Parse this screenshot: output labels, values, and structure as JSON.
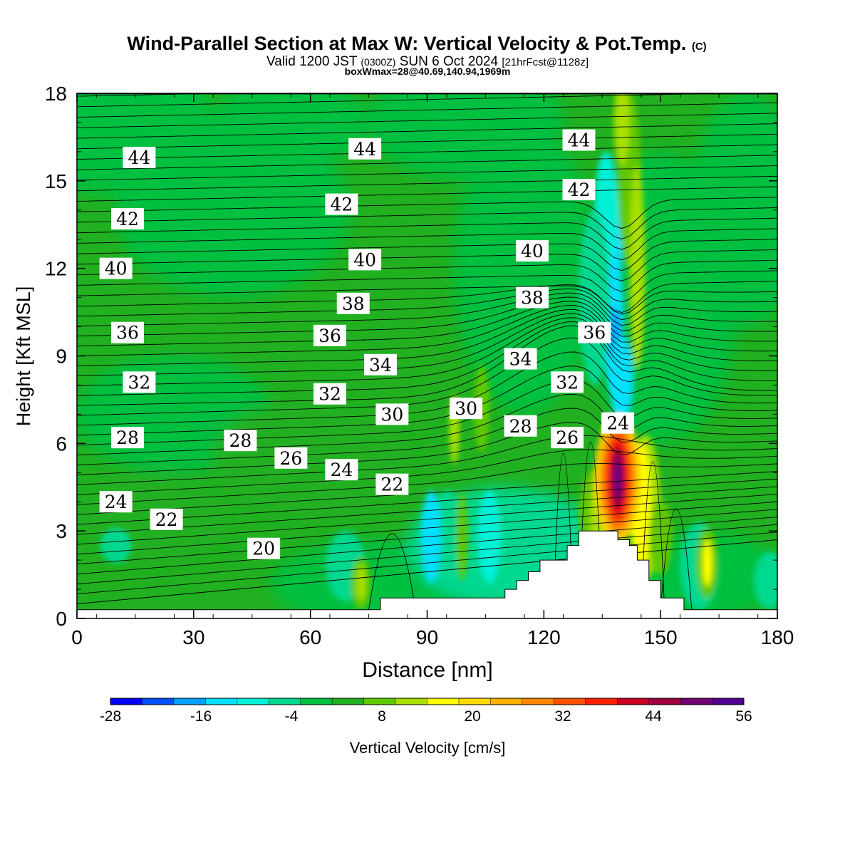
{
  "header": {
    "title": "Wind-Parallel Section at Max W: Vertical Velocity & Pot.Temp.",
    "title_mark": "(C)",
    "valid_prefix": "Valid 1200 JST",
    "valid_z": "(0300Z)",
    "valid_date": "SUN 6 Oct 2024",
    "valid_fcst": "[21hrFcst@1128z]",
    "boxwmax": "boxWmax=28@40.69,140.94,1969m"
  },
  "chart_data": {
    "type": "heatmap",
    "xlabel": "Distance [nm]",
    "ylabel": "Height [Kft MSL]",
    "xlim": [
      0,
      180
    ],
    "ylim": [
      0,
      18
    ],
    "x_ticks": [
      0,
      30,
      60,
      90,
      120,
      150,
      180
    ],
    "y_ticks": [
      0,
      3,
      6,
      9,
      12,
      15,
      18
    ],
    "colorbar": {
      "label": "Vertical Velocity [cm/s]",
      "tick_labels": [
        -28,
        -16,
        -4,
        8,
        20,
        32,
        44,
        56
      ],
      "bounds": [
        -28,
        56
      ],
      "colors": [
        "#0000ff",
        "#0050ff",
        "#00a0ff",
        "#00e0ff",
        "#00f0d8",
        "#00d890",
        "#00c040",
        "#20b020",
        "#60c800",
        "#a8e000",
        "#ffff00",
        "#ffd800",
        "#ffb000",
        "#ff8800",
        "#ff5000",
        "#ff2000",
        "#c80020",
        "#a00040",
        "#700070",
        "#500090"
      ]
    },
    "terrain_heights_kft": [
      [
        0,
        0.3
      ],
      [
        78,
        0.3
      ],
      [
        78,
        0.7
      ],
      [
        110,
        0.7
      ],
      [
        110,
        1.0
      ],
      [
        113,
        1.0
      ],
      [
        113,
        1.3
      ],
      [
        116,
        1.3
      ],
      [
        116,
        1.6
      ],
      [
        119,
        1.6
      ],
      [
        119,
        2.0
      ],
      [
        126,
        2.0
      ],
      [
        126,
        2.5
      ],
      [
        129,
        2.5
      ],
      [
        129,
        3.0
      ],
      [
        139,
        3.0
      ],
      [
        139,
        2.7
      ],
      [
        142,
        2.7
      ],
      [
        142,
        2.5
      ],
      [
        144,
        2.5
      ],
      [
        144,
        2.0
      ],
      [
        147,
        2.0
      ],
      [
        147,
        1.3
      ],
      [
        150,
        1.3
      ],
      [
        150,
        0.7
      ],
      [
        156,
        0.7
      ],
      [
        156,
        0.3
      ],
      [
        180,
        0.3
      ]
    ],
    "max_w": {
      "value_cms": 56,
      "x": 139,
      "y": 4.8
    },
    "theta_contour_labels": [
      {
        "text": "44",
        "x": 16,
        "y": 15.8
      },
      {
        "text": "44",
        "x": 74,
        "y": 16.1
      },
      {
        "text": "44",
        "x": 129,
        "y": 16.4
      },
      {
        "text": "42",
        "x": 13,
        "y": 13.7
      },
      {
        "text": "42",
        "x": 68,
        "y": 14.2
      },
      {
        "text": "42",
        "x": 129,
        "y": 14.7
      },
      {
        "text": "40",
        "x": 10,
        "y": 12.0
      },
      {
        "text": "40",
        "x": 74,
        "y": 12.3
      },
      {
        "text": "40",
        "x": 117,
        "y": 12.6
      },
      {
        "text": "38",
        "x": 71,
        "y": 10.8
      },
      {
        "text": "38",
        "x": 117,
        "y": 11.0
      },
      {
        "text": "36",
        "x": 13,
        "y": 9.8
      },
      {
        "text": "36",
        "x": 65,
        "y": 9.7
      },
      {
        "text": "36",
        "x": 133,
        "y": 9.8
      },
      {
        "text": "34",
        "x": 78,
        "y": 8.7
      },
      {
        "text": "34",
        "x": 114,
        "y": 8.9
      },
      {
        "text": "32",
        "x": 16,
        "y": 8.1
      },
      {
        "text": "32",
        "x": 65,
        "y": 7.7
      },
      {
        "text": "32",
        "x": 126,
        "y": 8.1
      },
      {
        "text": "30",
        "x": 81,
        "y": 7.0
      },
      {
        "text": "30",
        "x": 100,
        "y": 7.2
      },
      {
        "text": "28",
        "x": 13,
        "y": 6.2
      },
      {
        "text": "28",
        "x": 42,
        "y": 6.1
      },
      {
        "text": "28",
        "x": 114,
        "y": 6.6
      },
      {
        "text": "26",
        "x": 55,
        "y": 5.5
      },
      {
        "text": "26",
        "x": 126,
        "y": 6.2
      },
      {
        "text": "24",
        "x": 10,
        "y": 4.0
      },
      {
        "text": "24",
        "x": 68,
        "y": 5.1
      },
      {
        "text": "24",
        "x": 139,
        "y": 6.7
      },
      {
        "text": "22",
        "x": 23,
        "y": 3.4
      },
      {
        "text": "22",
        "x": 81,
        "y": 4.6
      },
      {
        "text": "20",
        "x": 48,
        "y": 2.4
      }
    ]
  }
}
